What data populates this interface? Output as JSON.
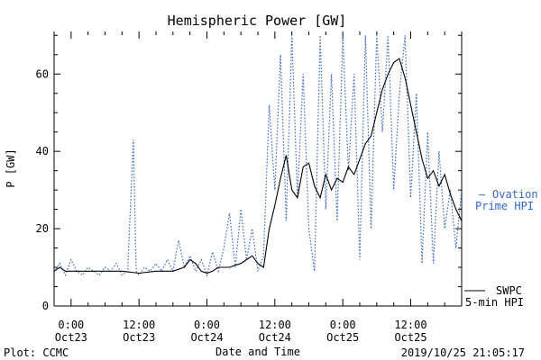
{
  "chart_data": {
    "type": "line",
    "title": "Hemispheric Power [GW]",
    "ylabel": "P [GW]",
    "xlabel": "Date and Time",
    "ylim": [
      0,
      71
    ],
    "xlim": [
      "2019-10-22 21:00",
      "2019-10-25 21:00"
    ],
    "y_ticks": [
      0,
      20,
      40,
      60
    ],
    "x_ticks": [
      {
        "t": "2019-10-23 00:00",
        "time": "0:00",
        "date": "Oct23"
      },
      {
        "t": "2019-10-23 12:00",
        "time": "12:00",
        "date": "Oct23"
      },
      {
        "t": "2019-10-24 00:00",
        "time": "0:00",
        "date": "Oct24"
      },
      {
        "t": "2019-10-24 12:00",
        "time": "12:00",
        "date": "Oct24"
      },
      {
        "t": "2019-10-25 00:00",
        "time": "0:00",
        "date": "Oct25"
      },
      {
        "t": "2019-10-25 12:00",
        "time": "12:00",
        "date": "Oct25"
      }
    ],
    "grid": false,
    "series": [
      {
        "name": "Ovation Prime HPI",
        "style": "dotted",
        "color": "#3366cc",
        "points": [
          [
            "2019-10-22 21:00",
            9
          ],
          [
            "2019-10-22 22:00",
            11
          ],
          [
            "2019-10-22 23:00",
            8
          ],
          [
            "2019-10-23 00:00",
            12
          ],
          [
            "2019-10-23 01:00",
            9
          ],
          [
            "2019-10-23 02:00",
            8
          ],
          [
            "2019-10-23 03:00",
            10
          ],
          [
            "2019-10-23 04:00",
            9
          ],
          [
            "2019-10-23 05:00",
            8
          ],
          [
            "2019-10-23 06:00",
            10
          ],
          [
            "2019-10-23 07:00",
            9
          ],
          [
            "2019-10-23 08:00",
            11
          ],
          [
            "2019-10-23 09:00",
            8
          ],
          [
            "2019-10-23 10:00",
            9
          ],
          [
            "2019-10-23 11:00",
            43
          ],
          [
            "2019-10-23 11:30",
            9
          ],
          [
            "2019-10-23 12:00",
            8
          ],
          [
            "2019-10-23 13:00",
            10
          ],
          [
            "2019-10-23 14:00",
            9
          ],
          [
            "2019-10-23 15:00",
            11
          ],
          [
            "2019-10-23 16:00",
            9
          ],
          [
            "2019-10-23 17:00",
            12
          ],
          [
            "2019-10-23 18:00",
            9
          ],
          [
            "2019-10-23 19:00",
            17
          ],
          [
            "2019-10-23 20:00",
            10
          ],
          [
            "2019-10-23 21:00",
            13
          ],
          [
            "2019-10-23 22:00",
            9
          ],
          [
            "2019-10-23 23:00",
            12
          ],
          [
            "2019-10-24 00:00",
            8
          ],
          [
            "2019-10-24 01:00",
            14
          ],
          [
            "2019-10-24 02:00",
            9
          ],
          [
            "2019-10-24 03:00",
            15
          ],
          [
            "2019-10-24 04:00",
            24
          ],
          [
            "2019-10-24 05:00",
            10
          ],
          [
            "2019-10-24 06:00",
            25
          ],
          [
            "2019-10-24 07:00",
            12
          ],
          [
            "2019-10-24 08:00",
            20
          ],
          [
            "2019-10-24 09:00",
            9
          ],
          [
            "2019-10-24 10:00",
            13
          ],
          [
            "2019-10-24 11:00",
            52
          ],
          [
            "2019-10-24 12:00",
            30
          ],
          [
            "2019-10-24 13:00",
            65
          ],
          [
            "2019-10-24 14:00",
            22
          ],
          [
            "2019-10-24 15:00",
            70
          ],
          [
            "2019-10-24 16:00",
            28
          ],
          [
            "2019-10-24 17:00",
            60
          ],
          [
            "2019-10-24 18:00",
            20
          ],
          [
            "2019-10-24 19:00",
            9
          ],
          [
            "2019-10-24 20:00",
            70
          ],
          [
            "2019-10-24 21:00",
            25
          ],
          [
            "2019-10-24 22:00",
            60
          ],
          [
            "2019-10-24 23:00",
            22
          ],
          [
            "2019-10-25 00:00",
            70
          ],
          [
            "2019-10-25 01:00",
            35
          ],
          [
            "2019-10-25 02:00",
            60
          ],
          [
            "2019-10-25 03:00",
            12
          ],
          [
            "2019-10-25 04:00",
            70
          ],
          [
            "2019-10-25 05:00",
            20
          ],
          [
            "2019-10-25 06:00",
            70
          ],
          [
            "2019-10-25 07:00",
            45
          ],
          [
            "2019-10-25 08:00",
            70
          ],
          [
            "2019-10-25 09:00",
            30
          ],
          [
            "2019-10-25 10:00",
            55
          ],
          [
            "2019-10-25 11:00",
            70
          ],
          [
            "2019-10-25 12:00",
            28
          ],
          [
            "2019-10-25 13:00",
            55
          ],
          [
            "2019-10-25 14:00",
            11
          ],
          [
            "2019-10-25 15:00",
            45
          ],
          [
            "2019-10-25 16:00",
            11
          ],
          [
            "2019-10-25 17:00",
            40
          ],
          [
            "2019-10-25 18:00",
            20
          ],
          [
            "2019-10-25 19:00",
            30
          ],
          [
            "2019-10-25 20:00",
            15
          ],
          [
            "2019-10-25 21:00",
            30
          ]
        ]
      },
      {
        "name": "SWPC 5-min HPI",
        "style": "solid",
        "color": "#000000",
        "points": [
          [
            "2019-10-22 21:00",
            9
          ],
          [
            "2019-10-22 22:00",
            10
          ],
          [
            "2019-10-22 23:00",
            9
          ],
          [
            "2019-10-23 00:00",
            9
          ],
          [
            "2019-10-23 03:00",
            9
          ],
          [
            "2019-10-23 06:00",
            9
          ],
          [
            "2019-10-23 09:00",
            9
          ],
          [
            "2019-10-23 12:00",
            8.5
          ],
          [
            "2019-10-23 15:00",
            9
          ],
          [
            "2019-10-23 18:00",
            9
          ],
          [
            "2019-10-23 20:00",
            10
          ],
          [
            "2019-10-23 21:00",
            12
          ],
          [
            "2019-10-23 22:00",
            11
          ],
          [
            "2019-10-23 23:00",
            9
          ],
          [
            "2019-10-24 00:00",
            8.5
          ],
          [
            "2019-10-24 01:00",
            9
          ],
          [
            "2019-10-24 02:00",
            10
          ],
          [
            "2019-10-24 04:00",
            10
          ],
          [
            "2019-10-24 06:00",
            11
          ],
          [
            "2019-10-24 07:00",
            12
          ],
          [
            "2019-10-24 08:00",
            13
          ],
          [
            "2019-10-24 09:00",
            11
          ],
          [
            "2019-10-24 10:00",
            10
          ],
          [
            "2019-10-24 11:00",
            20
          ],
          [
            "2019-10-24 12:00",
            26
          ],
          [
            "2019-10-24 13:00",
            33
          ],
          [
            "2019-10-24 14:00",
            39
          ],
          [
            "2019-10-24 15:00",
            30
          ],
          [
            "2019-10-24 16:00",
            28
          ],
          [
            "2019-10-24 17:00",
            36
          ],
          [
            "2019-10-24 18:00",
            37
          ],
          [
            "2019-10-24 19:00",
            31
          ],
          [
            "2019-10-24 20:00",
            28
          ],
          [
            "2019-10-24 21:00",
            34
          ],
          [
            "2019-10-24 22:00",
            30
          ],
          [
            "2019-10-24 23:00",
            33
          ],
          [
            "2019-10-25 00:00",
            32
          ],
          [
            "2019-10-25 01:00",
            36
          ],
          [
            "2019-10-25 02:00",
            34
          ],
          [
            "2019-10-25 03:00",
            38
          ],
          [
            "2019-10-25 04:00",
            42
          ],
          [
            "2019-10-25 05:00",
            44
          ],
          [
            "2019-10-25 06:00",
            50
          ],
          [
            "2019-10-25 07:00",
            56
          ],
          [
            "2019-10-25 08:00",
            60
          ],
          [
            "2019-10-25 09:00",
            63
          ],
          [
            "2019-10-25 10:00",
            64
          ],
          [
            "2019-10-25 11:00",
            59
          ],
          [
            "2019-10-25 12:00",
            52
          ],
          [
            "2019-10-25 13:00",
            45
          ],
          [
            "2019-10-25 14:00",
            38
          ],
          [
            "2019-10-25 15:00",
            33
          ],
          [
            "2019-10-25 16:00",
            35
          ],
          [
            "2019-10-25 17:00",
            31
          ],
          [
            "2019-10-25 18:00",
            34
          ],
          [
            "2019-10-25 19:00",
            29
          ],
          [
            "2019-10-25 20:00",
            25
          ],
          [
            "2019-10-25 21:00",
            22
          ]
        ]
      }
    ]
  },
  "legend": {
    "ovation_dash": "—",
    "ovation_line1": "Ovation",
    "ovation_line2": "Prime HPI",
    "swpc_line1": "SWPC",
    "swpc_line2": "5-min HPI"
  },
  "footer": {
    "plot_credit": "Plot: CCMC",
    "timestamp": "2019/10/25 21:05:17"
  },
  "colors": {
    "ovation": "#3366cc",
    "swpc": "#000000",
    "axis": "#000000",
    "legend_text_blue": "#3366cc"
  }
}
